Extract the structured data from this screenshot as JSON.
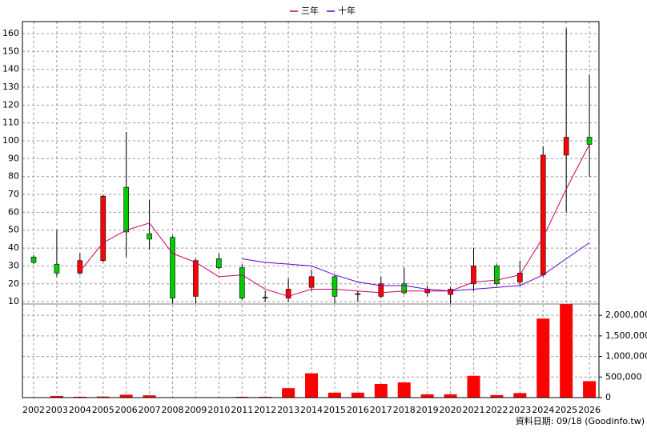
{
  "chart_data": [
    {
      "type": "candlestick",
      "categories": [
        "2002",
        "2003",
        "2004",
        "2005",
        "2006",
        "2007",
        "2008",
        "2009",
        "2010",
        "2011",
        "2012",
        "2013",
        "2014",
        "2015",
        "2016",
        "2017",
        "2018",
        "2019",
        "2020",
        "2021",
        "2022",
        "2023",
        "2024",
        "2025",
        "2026"
      ],
      "open": [
        35,
        31,
        26,
        33,
        74,
        48,
        46,
        13,
        34,
        29,
        12,
        12,
        18,
        24,
        14,
        13,
        20,
        15,
        14,
        20,
        30,
        21,
        25,
        92,
        102
      ],
      "high": [
        36,
        50,
        37,
        70,
        105,
        67,
        47,
        34,
        37,
        31,
        16,
        23,
        28,
        25,
        16,
        24,
        29,
        19,
        18,
        40,
        31,
        33,
        97,
        163,
        137
      ],
      "low": [
        31,
        24,
        25,
        32,
        35,
        39,
        9,
        9,
        28,
        11,
        10,
        10,
        16,
        9,
        10,
        12,
        14,
        13,
        9,
        16,
        19,
        19,
        24,
        60,
        80
      ],
      "close": [
        32,
        26,
        33,
        69,
        49,
        45,
        12,
        33,
        29,
        12,
        12.5,
        17,
        24,
        13,
        14.5,
        20,
        15,
        17,
        17,
        30,
        20,
        26,
        92,
        102,
        98
      ],
      "up_color": "#ff0000",
      "down_color": "#00cc00",
      "series": [
        {
          "name": "三年",
          "color": "#cc0066",
          "values": [
            null,
            null,
            27,
            43,
            50,
            54,
            37,
            32,
            24,
            25,
            17,
            13,
            17,
            17,
            16,
            15,
            16,
            16,
            16,
            21,
            22,
            25,
            46,
            73,
            98
          ]
        },
        {
          "name": "十年",
          "color": "#6600cc",
          "values": [
            null,
            null,
            null,
            null,
            null,
            null,
            null,
            null,
            null,
            34,
            32,
            31,
            30,
            25,
            21,
            19,
            19,
            17,
            16,
            17,
            18,
            19,
            25,
            34,
            43
          ]
        }
      ],
      "ylim": [
        8.7,
        166.7
      ],
      "yticks": [
        10,
        20,
        30,
        40,
        50,
        60,
        70,
        80,
        90,
        100,
        110,
        120,
        130,
        140,
        150,
        160
      ],
      "grid": true
    },
    {
      "type": "bar",
      "color": "#ff0000",
      "values": [
        5000,
        40000,
        20000,
        25000,
        70000,
        55000,
        5000,
        5000,
        5000,
        20000,
        20000,
        230000,
        590000,
        120000,
        120000,
        330000,
        370000,
        80000,
        80000,
        530000,
        60000,
        110000,
        1920000,
        2270000,
        400000
      ],
      "ylim": [
        0,
        2275000
      ],
      "yticks": [
        0,
        {
          "value": 500000,
          "label": "500,000"
        },
        {
          "value": 1000000,
          "label": "1,000,000"
        },
        {
          "value": 1500000,
          "label": "1,500,000"
        },
        {
          "value": 2000000,
          "label": "2,000,000"
        }
      ],
      "grid": true
    }
  ],
  "footer": "資料日期: 09/18 (Goodinfo.tw)"
}
